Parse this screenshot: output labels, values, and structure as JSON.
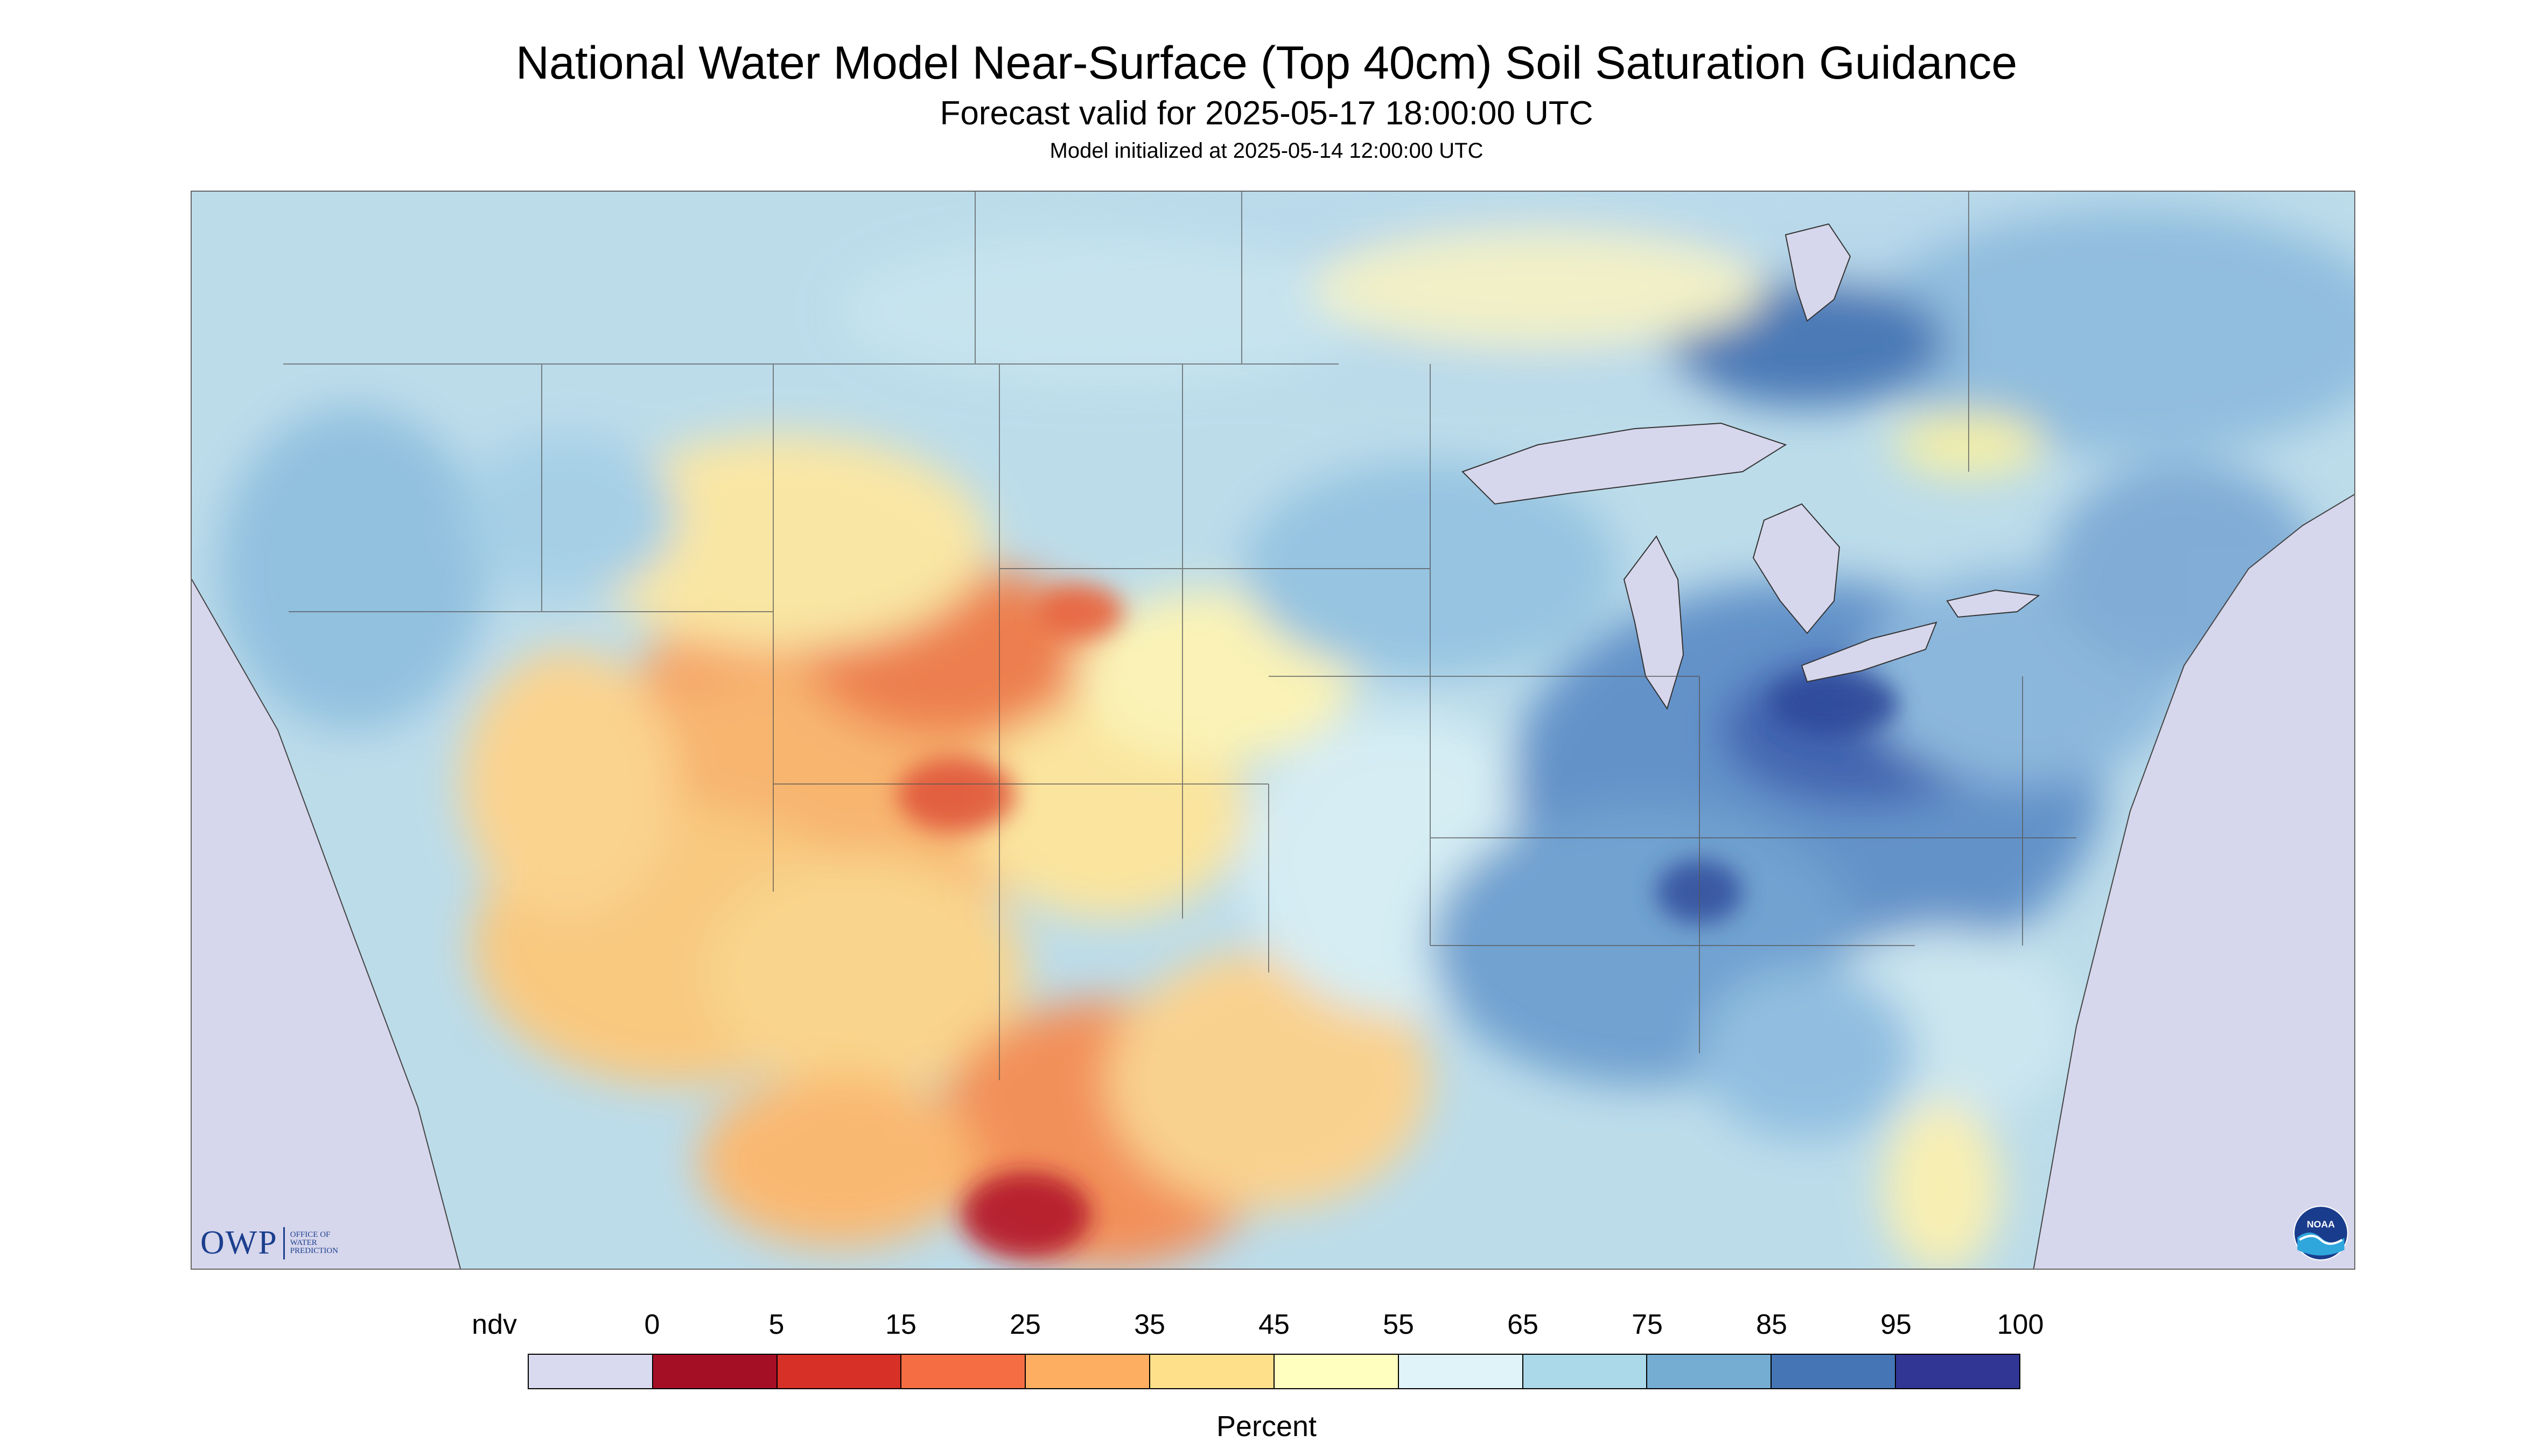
{
  "header": {
    "title": "National Water Model Near-Surface (Top 40cm) Soil Saturation Guidance",
    "forecast_valid": "Forecast valid for 2025-05-17 18:00:00 UTC",
    "model_initialized": "Model initialized at 2025-05-14 12:00:00 UTC"
  },
  "logos": {
    "owp_text": "OWP",
    "owp_subtext": [
      "OFFICE OF",
      "WATER",
      "PREDICTION"
    ]
  },
  "legend": {
    "unit": "Percent",
    "labels": [
      "ndv",
      "0",
      "5",
      "15",
      "25",
      "35",
      "45",
      "55",
      "65",
      "75",
      "85",
      "95",
      "100"
    ],
    "colors": [
      "#d9d9ef",
      "#a50f26",
      "#d73027",
      "#f46d43",
      "#fdae61",
      "#fee08b",
      "#ffffbf",
      "#e0f3f8",
      "#abd9e9",
      "#74add1",
      "#4575b4",
      "#313695"
    ]
  },
  "colors": {
    "no_data": "#d9d9ef",
    "water": "#d6d6ec"
  },
  "icons": [
    "owp-logo",
    "noaa-logo"
  ]
}
